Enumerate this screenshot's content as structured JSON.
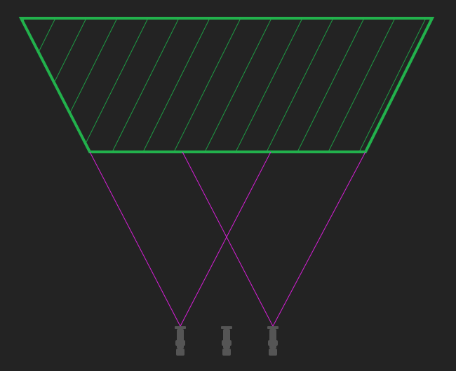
{
  "colors": {
    "background": "#232323",
    "zone_outline": "#22b14c",
    "zone_hatch": "#1e9c45",
    "rays": "#d81fd8",
    "device": "#555555"
  },
  "diagram": {
    "zone_shape": "trapezoid",
    "zone_fill": "diagonal-hatch",
    "device_count": 3,
    "emitting_devices": 2,
    "rays_per_device": 2,
    "device_icon": "projector-icon"
  }
}
